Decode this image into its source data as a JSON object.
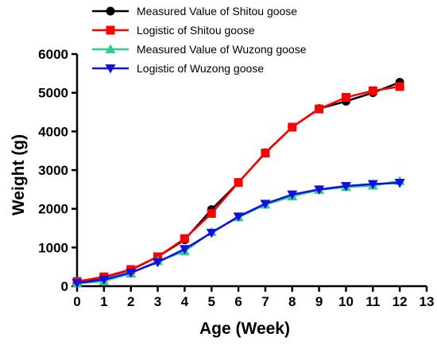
{
  "chart_data": {
    "type": "line",
    "title": "",
    "xlabel": "Age (Week)",
    "ylabel": "Weight (g)",
    "xlim": [
      0,
      13
    ],
    "ylim": [
      0,
      6000
    ],
    "xticks": [
      0,
      1,
      2,
      3,
      4,
      5,
      6,
      7,
      8,
      9,
      10,
      11,
      12,
      13
    ],
    "yticks": [
      0,
      1000,
      2000,
      3000,
      4000,
      5000,
      6000
    ],
    "grid": false,
    "legend_position": "top",
    "x": [
      0,
      1,
      2,
      3,
      4,
      5,
      6,
      7,
      8,
      9,
      10,
      11,
      12
    ],
    "series": [
      {
        "name": "Measured Value of Shitou goose",
        "color": "#000000",
        "marker": "circle",
        "values": [
          110,
          230,
          420,
          760,
          1200,
          1980,
          2680,
          3450,
          4110,
          4590,
          4780,
          5000,
          5270
        ]
      },
      {
        "name": "Logistic of Shitou goose",
        "color": "#ff0000",
        "marker": "square",
        "values": [
          120,
          240,
          430,
          760,
          1230,
          1880,
          2680,
          3440,
          4110,
          4580,
          4880,
          5050,
          5160
        ]
      },
      {
        "name": "Measured Value of Wuzong goose",
        "color": "#2ecc8f",
        "marker": "triangle-up",
        "values": [
          70,
          130,
          330,
          650,
          900,
          1400,
          1780,
          2110,
          2320,
          2490,
          2560,
          2600,
          2720
        ]
      },
      {
        "name": "Logistic of Wuzong goose",
        "color": "#1010e0",
        "marker": "triangle-down",
        "values": [
          80,
          170,
          350,
          620,
          960,
          1380,
          1800,
          2130,
          2370,
          2500,
          2590,
          2640,
          2670
        ]
      }
    ]
  }
}
